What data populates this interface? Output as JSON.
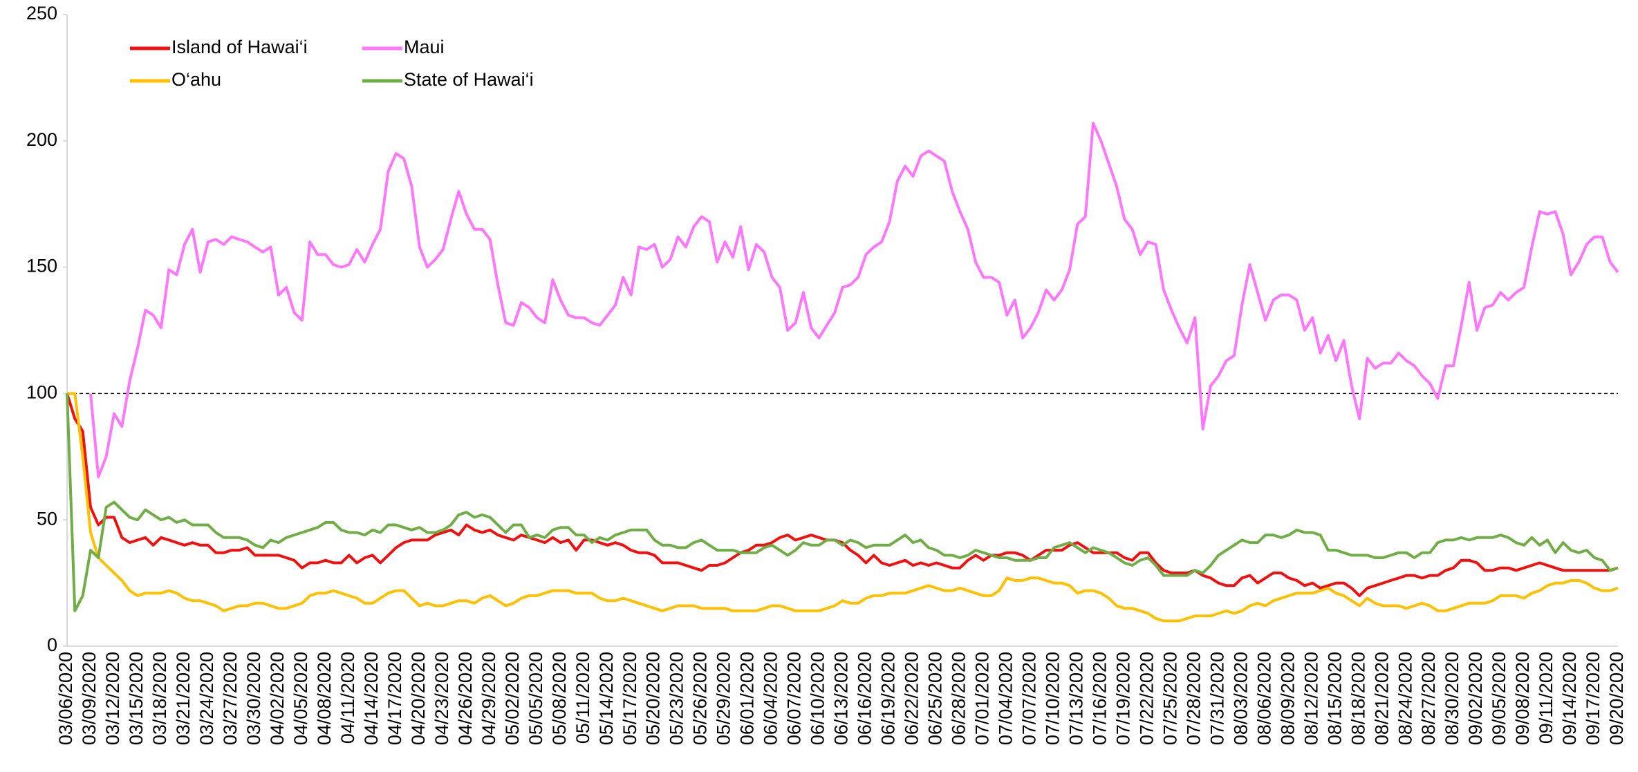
{
  "chart_data": {
    "type": "line",
    "categories": [
      "03/06/2020",
      null,
      null,
      "03/09/2020",
      null,
      null,
      "03/12/2020",
      null,
      null,
      "03/15/2020",
      null,
      null,
      "03/18/2020",
      null,
      null,
      "03/21/2020",
      null,
      null,
      "03/24/2020",
      null,
      null,
      "03/27/2020",
      null,
      null,
      "03/30/2020",
      null,
      null,
      "04/02/2020",
      null,
      null,
      "04/05/2020",
      null,
      null,
      "04/08/2020",
      null,
      null,
      "04/11/2020",
      null,
      null,
      "04/14/2020",
      null,
      null,
      "04/17/2020",
      null,
      null,
      "04/20/2020",
      null,
      null,
      "04/23/2020",
      null,
      null,
      "04/26/2020",
      null,
      null,
      "04/29/2020",
      null,
      null,
      "05/02/2020",
      null,
      null,
      "05/05/2020",
      null,
      null,
      "05/08/2020",
      null,
      null,
      "05/11/2020",
      null,
      null,
      "05/14/2020",
      null,
      null,
      "05/17/2020",
      null,
      null,
      "05/20/2020",
      null,
      null,
      "05/23/2020",
      null,
      null,
      "05/26/2020",
      null,
      null,
      "05/29/2020",
      null,
      null,
      "06/01/2020",
      null,
      null,
      "06/04/2020",
      null,
      null,
      "06/07/2020",
      null,
      null,
      "06/10/2020",
      null,
      null,
      "06/13/2020",
      null,
      null,
      "06/16/2020",
      null,
      null,
      "06/19/2020",
      null,
      null,
      "06/22/2020",
      null,
      null,
      "06/25/2020",
      null,
      null,
      "06/28/2020",
      null,
      null,
      "07/01/2020",
      null,
      null,
      "07/04/2020",
      null,
      null,
      "07/07/2020",
      null,
      null,
      "07/10/2020",
      null,
      null,
      "07/13/2020",
      null,
      null,
      "07/16/2020",
      null,
      null,
      "07/19/2020",
      null,
      null,
      "07/22/2020",
      null,
      null,
      "07/25/2020",
      null,
      null,
      "07/28/2020",
      null,
      null,
      "07/31/2020",
      null,
      null,
      "08/03/2020",
      null,
      null,
      "08/06/2020",
      null,
      null,
      "08/09/2020",
      null,
      null,
      "08/12/2020",
      null,
      null,
      "08/15/2020",
      null,
      null,
      "08/18/2020",
      null,
      null,
      "08/21/2020",
      null,
      null,
      "08/24/2020",
      null,
      null,
      "08/27/2020",
      null,
      null,
      "08/30/2020",
      null,
      null,
      "09/02/2020",
      null,
      null,
      "09/05/2020",
      null,
      null,
      "09/08/2020",
      null,
      null,
      "09/11/2020",
      null,
      null,
      "09/14/2020",
      null,
      null,
      "09/17/2020",
      null,
      null,
      "09/20/2020"
    ],
    "series": [
      {
        "name": "Island of Hawai‘i",
        "color": "#ee1111",
        "values": [
          100,
          90,
          85,
          55,
          48,
          51,
          51,
          43,
          41,
          42,
          43,
          40,
          43,
          42,
          41,
          40,
          41,
          40,
          40,
          37,
          37,
          38,
          38,
          39,
          36,
          36,
          36,
          36,
          35,
          34,
          31,
          33,
          33,
          34,
          33,
          33,
          36,
          33,
          35,
          36,
          33,
          36,
          39,
          41,
          42,
          42,
          42,
          44,
          45,
          46,
          44,
          48,
          46,
          45,
          46,
          44,
          43,
          42,
          44,
          43,
          42,
          41,
          43,
          41,
          42,
          38,
          42,
          42,
          41,
          40,
          41,
          40,
          38,
          37,
          37,
          36,
          33,
          33,
          33,
          32,
          31,
          30,
          32,
          32,
          33,
          35,
          37,
          38,
          40,
          40,
          41,
          43,
          44,
          42,
          43,
          44,
          43,
          42,
          42,
          41,
          38,
          36,
          33,
          36,
          33,
          32,
          33,
          34,
          32,
          33,
          32,
          33,
          32,
          31,
          31,
          34,
          36,
          34,
          36,
          36,
          37,
          37,
          36,
          34,
          36,
          38,
          38,
          38,
          40,
          41,
          39,
          37,
          37,
          37,
          37,
          35,
          34,
          37,
          37,
          33,
          30,
          29,
          29,
          29,
          30,
          28,
          27,
          25,
          24,
          24,
          27,
          28,
          25,
          27,
          29,
          29,
          27,
          26,
          24,
          25,
          23,
          24,
          25,
          25,
          23,
          20,
          23,
          24,
          25,
          26,
          27,
          28,
          28,
          27,
          28,
          28,
          30,
          31,
          34,
          34,
          33,
          30,
          30,
          31,
          31,
          30,
          31,
          32,
          33,
          32,
          31,
          30,
          30,
          30,
          30,
          30,
          30,
          30,
          31
        ]
      },
      {
        "name": "Maui",
        "color": "#ff77ff",
        "values": [
          null,
          null,
          null,
          100,
          67,
          75,
          92,
          87,
          105,
          118,
          133,
          131,
          126,
          149,
          147,
          159,
          165,
          148,
          160,
          161,
          159,
          162,
          161,
          160,
          158,
          156,
          158,
          139,
          142,
          132,
          129,
          160,
          155,
          155,
          151,
          150,
          151,
          157,
          152,
          159,
          165,
          188,
          195,
          193,
          182,
          158,
          150,
          153,
          157,
          169,
          180,
          171,
          165,
          165,
          161,
          143,
          128,
          127,
          136,
          134,
          130,
          128,
          145,
          137,
          131,
          130,
          130,
          128,
          127,
          131,
          135,
          146,
          139,
          158,
          157,
          159,
          150,
          153,
          162,
          158,
          166,
          170,
          168,
          152,
          160,
          154,
          166,
          149,
          159,
          156,
          146,
          142,
          125,
          128,
          140,
          126,
          122,
          127,
          132,
          142,
          143,
          146,
          155,
          158,
          160,
          168,
          184,
          190,
          186,
          194,
          196,
          194,
          192,
          180,
          172,
          165,
          152,
          146,
          146,
          144,
          131,
          137,
          122,
          126,
          132,
          141,
          137,
          141,
          149,
          167,
          170,
          207,
          200,
          191,
          182,
          169,
          165,
          155,
          160,
          159,
          141,
          133,
          126,
          120,
          130,
          86,
          103,
          107,
          113,
          115,
          135,
          151,
          140,
          129,
          137,
          139,
          139,
          137,
          125,
          130,
          116,
          123,
          113,
          121,
          103,
          90,
          114,
          110,
          112,
          112,
          116,
          113,
          111,
          107,
          104,
          98,
          111,
          111,
          127,
          144,
          125,
          134,
          135,
          140,
          137,
          140,
          142,
          158,
          172,
          171,
          172,
          163,
          147,
          152,
          159,
          162,
          162,
          152,
          148
        ]
      },
      {
        "name": "O‘ahu",
        "color": "#ffc000",
        "values": [
          100,
          100,
          75,
          45,
          35,
          32,
          29,
          26,
          22,
          20,
          21,
          21,
          21,
          22,
          21,
          19,
          18,
          18,
          17,
          16,
          14,
          15,
          16,
          16,
          17,
          17,
          16,
          15,
          15,
          16,
          17,
          20,
          21,
          21,
          22,
          21,
          20,
          19,
          17,
          17,
          19,
          21,
          22,
          22,
          19,
          16,
          17,
          16,
          16,
          17,
          18,
          18,
          17,
          19,
          20,
          18,
          16,
          17,
          19,
          20,
          20,
          21,
          22,
          22,
          22,
          21,
          21,
          21,
          19,
          18,
          18,
          19,
          18,
          17,
          16,
          15,
          14,
          15,
          16,
          16,
          16,
          15,
          15,
          15,
          15,
          14,
          14,
          14,
          14,
          15,
          16,
          16,
          15,
          14,
          14,
          14,
          14,
          15,
          16,
          18,
          17,
          17,
          19,
          20,
          20,
          21,
          21,
          21,
          22,
          23,
          24,
          23,
          22,
          22,
          23,
          22,
          21,
          20,
          20,
          22,
          27,
          26,
          26,
          27,
          27,
          26,
          25,
          25,
          24,
          21,
          22,
          22,
          21,
          19,
          16,
          15,
          15,
          14,
          13,
          11,
          10,
          10,
          10,
          11,
          12,
          12,
          12,
          13,
          14,
          13,
          14,
          16,
          17,
          16,
          18,
          19,
          20,
          21,
          21,
          21,
          22,
          23,
          21,
          20,
          18,
          16,
          19,
          17,
          16,
          16,
          16,
          15,
          16,
          17,
          16,
          14,
          14,
          15,
          16,
          17,
          17,
          17,
          18,
          20,
          20,
          20,
          19,
          21,
          22,
          24,
          25,
          25,
          26,
          26,
          25,
          23,
          22,
          22,
          23
        ]
      },
      {
        "name": "State of Hawai‘i",
        "color": "#70ad47",
        "values": [
          100,
          14,
          20,
          38,
          35,
          55,
          57,
          54,
          51,
          50,
          54,
          52,
          50,
          51,
          49,
          50,
          48,
          48,
          48,
          45,
          43,
          43,
          43,
          42,
          40,
          39,
          42,
          41,
          43,
          44,
          45,
          46,
          47,
          49,
          49,
          46,
          45,
          45,
          44,
          46,
          45,
          48,
          48,
          47,
          46,
          47,
          45,
          45,
          46,
          48,
          52,
          53,
          51,
          52,
          51,
          48,
          45,
          48,
          48,
          43,
          44,
          43,
          46,
          47,
          47,
          44,
          44,
          41,
          43,
          42,
          44,
          45,
          46,
          46,
          46,
          42,
          40,
          40,
          39,
          39,
          41,
          42,
          40,
          38,
          38,
          38,
          37,
          37,
          37,
          39,
          40,
          38,
          36,
          38,
          41,
          40,
          40,
          42,
          42,
          40,
          42,
          41,
          39,
          40,
          40,
          40,
          42,
          44,
          41,
          42,
          39,
          38,
          36,
          36,
          35,
          36,
          38,
          37,
          36,
          35,
          35,
          34,
          34,
          34,
          35,
          35,
          39,
          40,
          41,
          39,
          37,
          39,
          38,
          37,
          35,
          33,
          32,
          34,
          35,
          32,
          28,
          28,
          28,
          28,
          30,
          29,
          32,
          36,
          38,
          40,
          42,
          41,
          41,
          44,
          44,
          43,
          44,
          46,
          45,
          45,
          44,
          38,
          38,
          37,
          36,
          36,
          36,
          35,
          35,
          36,
          37,
          37,
          35,
          37,
          37,
          41,
          42,
          42,
          43,
          42,
          43,
          43,
          43,
          44,
          43,
          41,
          40,
          43,
          40,
          42,
          37,
          41,
          38,
          37,
          38,
          35,
          34,
          30,
          31
        ]
      }
    ],
    "ylim": [
      0,
      250
    ],
    "yticks": [
      0,
      50,
      100,
      150,
      200,
      250
    ],
    "reference_line": 100,
    "legend": "top-left"
  }
}
